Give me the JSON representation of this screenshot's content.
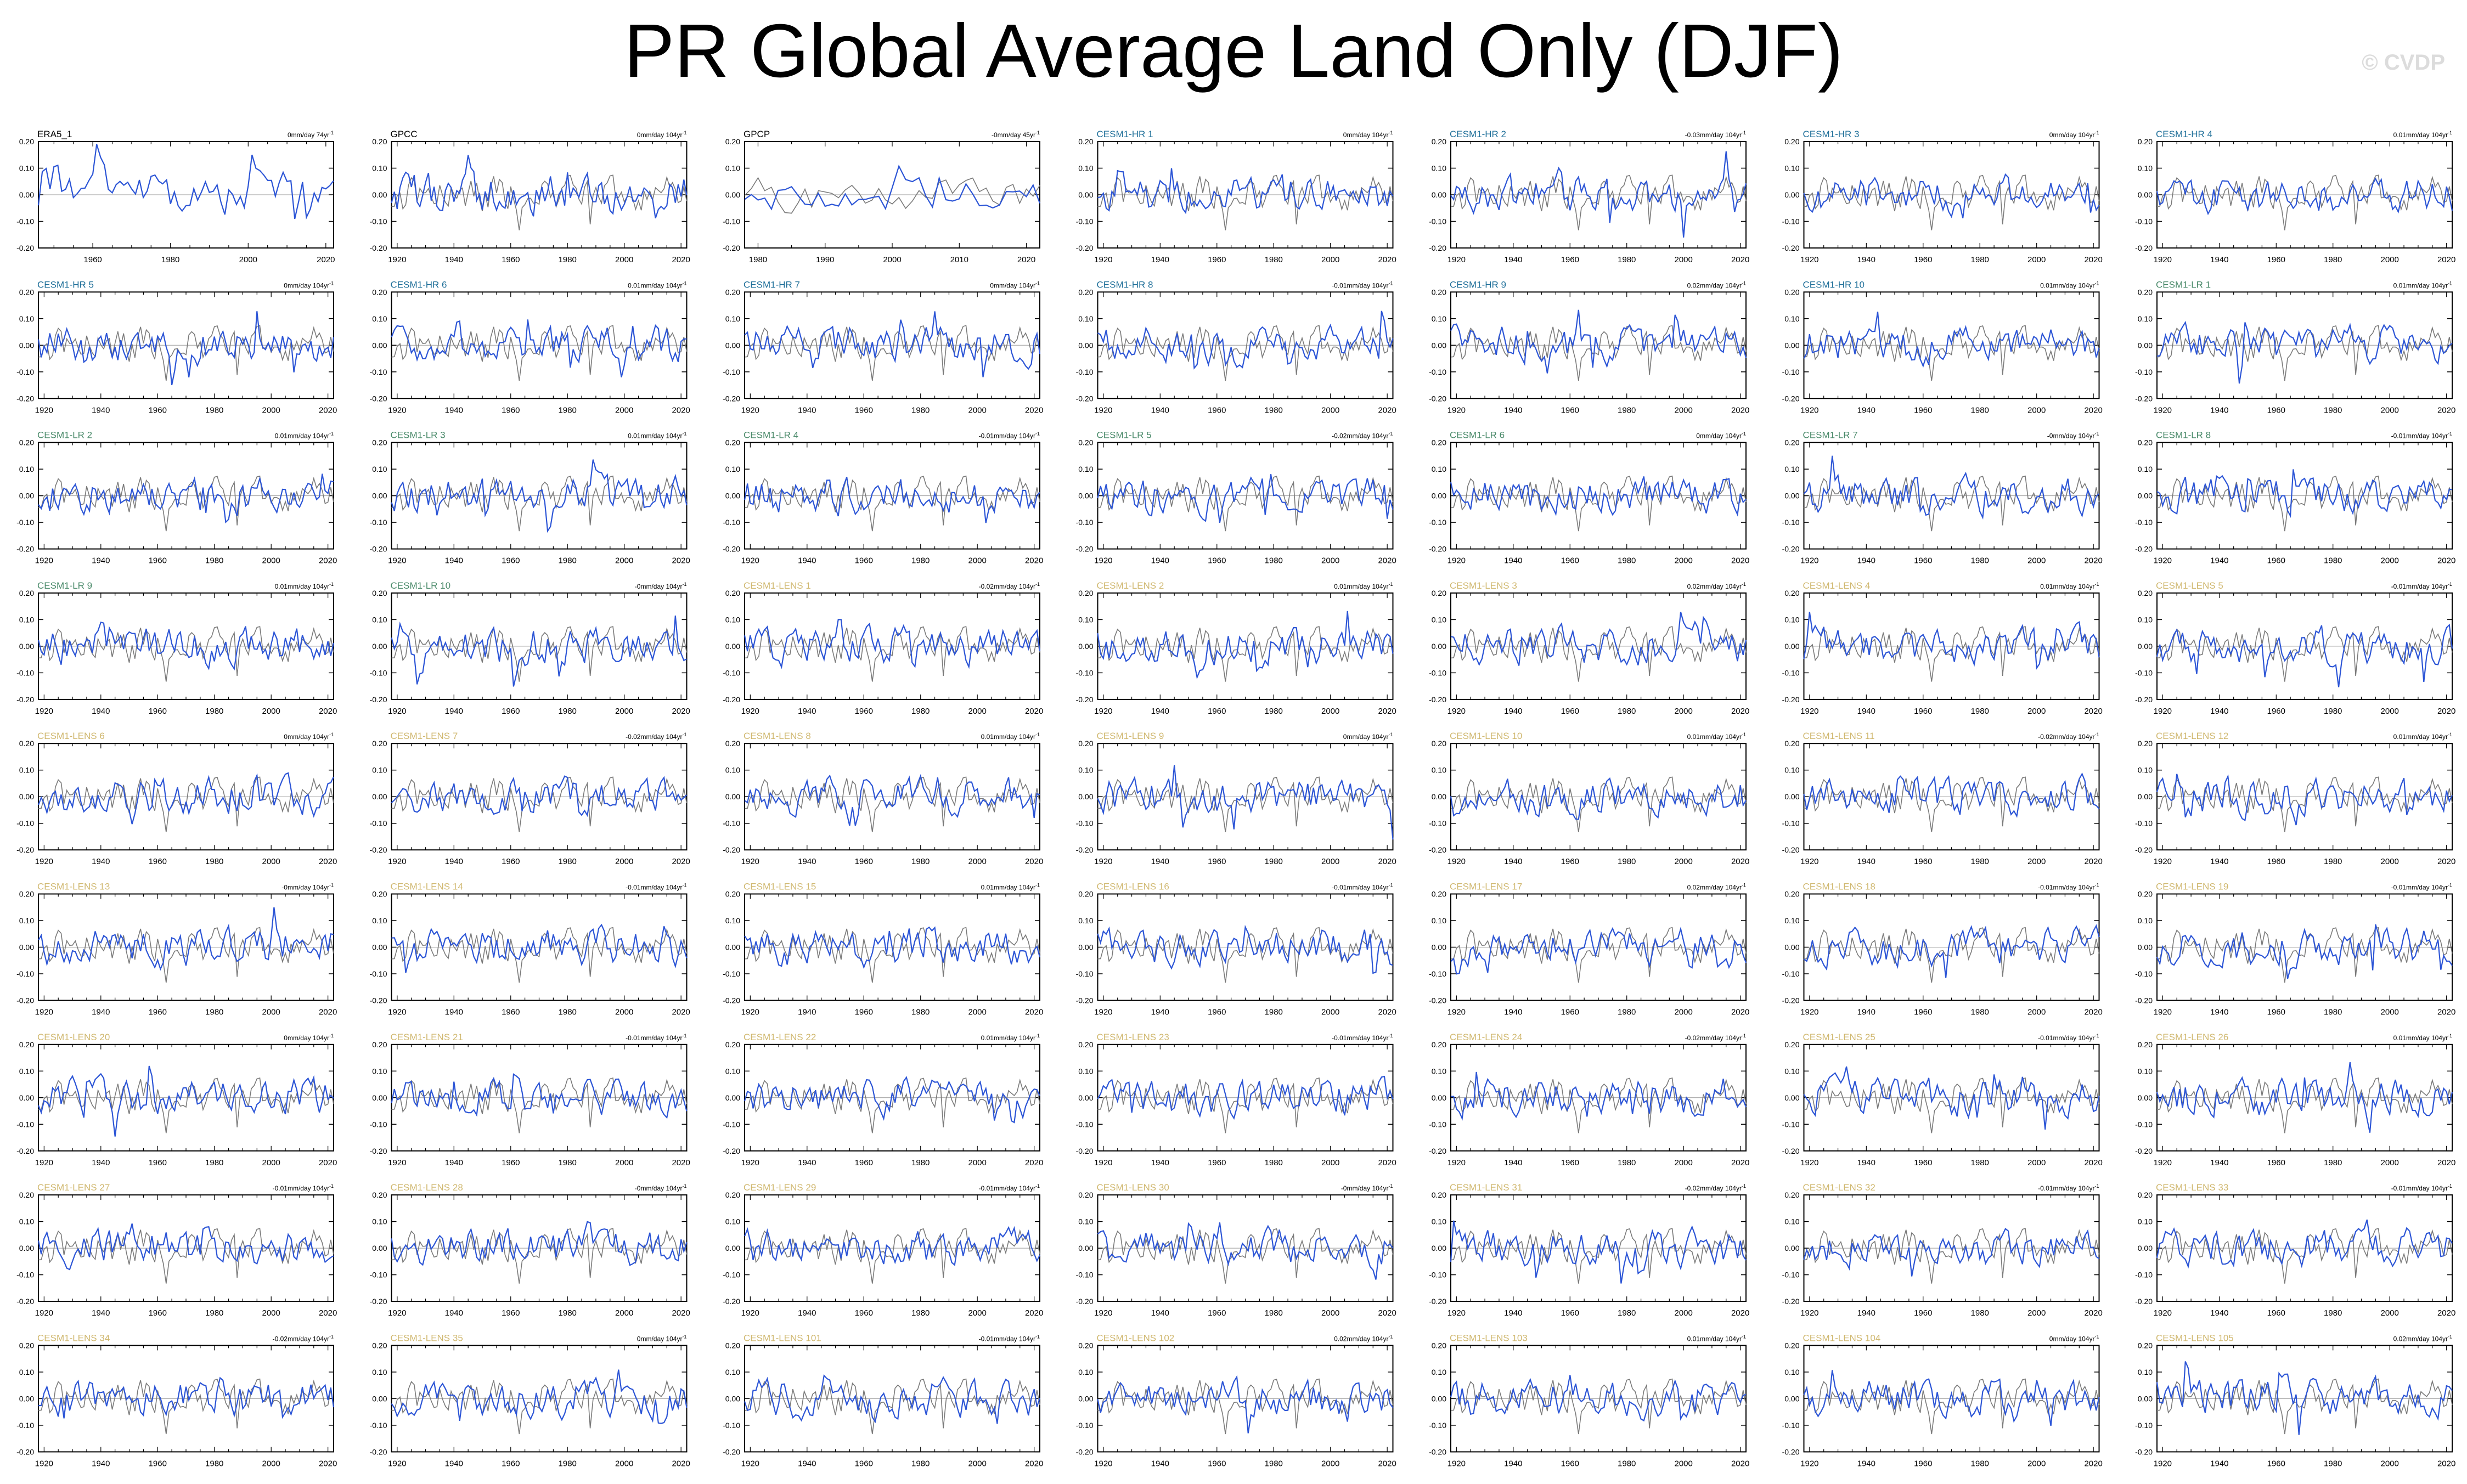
{
  "figure": {
    "title": "PR Global Average Land Only (DJF)",
    "watermark": "© CVDP",
    "obs_line_color": "#7a7a7a",
    "model_line_color": "#2c55d6",
    "label_colors": {
      "obs": "#000000",
      "hr": "#1f6f99",
      "lr": "#4a8a6a",
      "lens": "#d0b870"
    }
  },
  "chart_data": {
    "type": "line",
    "ylim": [
      -0.2,
      0.2
    ],
    "yticks": [
      -0.2,
      -0.1,
      0.0,
      0.1,
      0.2
    ],
    "ytick_labels": [
      "-0.20",
      "-0.10",
      "0.00",
      "0.10",
      "0.20"
    ],
    "grid": false,
    "panels": [
      {
        "label": "ERA5_1",
        "trend": "0mm/day 74yr",
        "group": "obs",
        "xlim": [
          1946,
          2022
        ],
        "xticks": [
          1960,
          1980,
          2000,
          2020
        ],
        "amp": 0.085,
        "seed": 11
      },
      {
        "label": "GPCC",
        "trend": "0mm/day 104yr",
        "group": "obs",
        "xlim": [
          1918,
          2022
        ],
        "xticks": [
          1920,
          1940,
          1960,
          1980,
          2000,
          2020
        ],
        "amp": 0.085,
        "seed": 12
      },
      {
        "label": "GPCP",
        "trend": "-0mm/day 45yr",
        "group": "obs",
        "xlim": [
          1978,
          2022
        ],
        "xticks": [
          1980,
          1990,
          2000,
          2010,
          2020
        ],
        "amp": 0.07,
        "seed": 13
      },
      {
        "label": "CESM1-HR 1",
        "trend": "0mm/day 104yr",
        "group": "hr",
        "amp": 0.075,
        "seed": 14
      },
      {
        "label": "CESM1-HR 2",
        "trend": "-0.03mm/day 104yr",
        "group": "hr",
        "amp": 0.075,
        "seed": 15
      },
      {
        "label": "CESM1-HR 3",
        "trend": "0mm/day 104yr",
        "group": "hr",
        "amp": 0.075,
        "seed": 16
      },
      {
        "label": "CESM1-HR 4",
        "trend": "0.01mm/day 104yr",
        "group": "hr",
        "amp": 0.075,
        "seed": 17
      },
      {
        "label": "CESM1-HR 5",
        "trend": "0mm/day 104yr",
        "group": "hr",
        "amp": 0.075,
        "seed": 18
      },
      {
        "label": "CESM1-HR 6",
        "trend": "0.01mm/day 104yr",
        "group": "hr",
        "amp": 0.075,
        "seed": 19
      },
      {
        "label": "CESM1-HR 7",
        "trend": "0mm/day 104yr",
        "group": "hr",
        "amp": 0.075,
        "seed": 20
      },
      {
        "label": "CESM1-HR 8",
        "trend": "-0.01mm/day 104yr",
        "group": "hr",
        "amp": 0.075,
        "seed": 21
      },
      {
        "label": "CESM1-HR 9",
        "trend": "0.02mm/day 104yr",
        "group": "hr",
        "amp": 0.075,
        "seed": 22
      },
      {
        "label": "CESM1-HR 10",
        "trend": "0.01mm/day 104yr",
        "group": "hr",
        "amp": 0.075,
        "seed": 23
      },
      {
        "label": "CESM1-LR 1",
        "trend": "0.01mm/day 104yr",
        "group": "lr",
        "amp": 0.075,
        "seed": 24
      },
      {
        "label": "CESM1-LR 2",
        "trend": "0.01mm/day 104yr",
        "group": "lr",
        "amp": 0.075,
        "seed": 25
      },
      {
        "label": "CESM1-LR 3",
        "trend": "0.01mm/day 104yr",
        "group": "lr",
        "amp": 0.075,
        "seed": 26
      },
      {
        "label": "CESM1-LR 4",
        "trend": "-0.01mm/day 104yr",
        "group": "lr",
        "amp": 0.075,
        "seed": 27
      },
      {
        "label": "CESM1-LR 5",
        "trend": "-0.02mm/day 104yr",
        "group": "lr",
        "amp": 0.075,
        "seed": 28
      },
      {
        "label": "CESM1-LR 6",
        "trend": "0mm/day 104yr",
        "group": "lr",
        "amp": 0.075,
        "seed": 29
      },
      {
        "label": "CESM1-LR 7",
        "trend": "-0mm/day 104yr",
        "group": "lr",
        "amp": 0.075,
        "seed": 30
      },
      {
        "label": "CESM1-LR 8",
        "trend": "-0.01mm/day 104yr",
        "group": "lr",
        "amp": 0.075,
        "seed": 31
      },
      {
        "label": "CESM1-LR 9",
        "trend": "0.01mm/day 104yr",
        "group": "lr",
        "amp": 0.075,
        "seed": 32
      },
      {
        "label": "CESM1-LR 10",
        "trend": "-0mm/day 104yr",
        "group": "lr",
        "amp": 0.075,
        "seed": 33
      },
      {
        "label": "CESM1-LENS 1",
        "trend": "-0.02mm/day 104yr",
        "group": "lens",
        "amp": 0.075,
        "seed": 34
      },
      {
        "label": "CESM1-LENS 2",
        "trend": "0.01mm/day 104yr",
        "group": "lens",
        "amp": 0.075,
        "seed": 35
      },
      {
        "label": "CESM1-LENS 3",
        "trend": "0.02mm/day 104yr",
        "group": "lens",
        "amp": 0.075,
        "seed": 36
      },
      {
        "label": "CESM1-LENS 4",
        "trend": "0.01mm/day 104yr",
        "group": "lens",
        "amp": 0.075,
        "seed": 37
      },
      {
        "label": "CESM1-LENS 5",
        "trend": "-0.01mm/day 104yr",
        "group": "lens",
        "amp": 0.075,
        "seed": 38
      },
      {
        "label": "CESM1-LENS 6",
        "trend": "0mm/day 104yr",
        "group": "lens",
        "amp": 0.075,
        "seed": 39
      },
      {
        "label": "CESM1-LENS 7",
        "trend": "-0.02mm/day 104yr",
        "group": "lens",
        "amp": 0.075,
        "seed": 40
      },
      {
        "label": "CESM1-LENS 8",
        "trend": "0.01mm/day 104yr",
        "group": "lens",
        "amp": 0.075,
        "seed": 41
      },
      {
        "label": "CESM1-LENS 9",
        "trend": "0mm/day 104yr",
        "group": "lens",
        "amp": 0.075,
        "seed": 42
      },
      {
        "label": "CESM1-LENS 10",
        "trend": "0.01mm/day 104yr",
        "group": "lens",
        "amp": 0.075,
        "seed": 43
      },
      {
        "label": "CESM1-LENS 11",
        "trend": "-0.02mm/day 104yr",
        "group": "lens",
        "amp": 0.075,
        "seed": 44
      },
      {
        "label": "CESM1-LENS 12",
        "trend": "0.01mm/day 104yr",
        "group": "lens",
        "amp": 0.075,
        "seed": 45
      },
      {
        "label": "CESM1-LENS 13",
        "trend": "-0mm/day 104yr",
        "group": "lens",
        "amp": 0.075,
        "seed": 46
      },
      {
        "label": "CESM1-LENS 14",
        "trend": "-0.01mm/day 104yr",
        "group": "lens",
        "amp": 0.075,
        "seed": 47
      },
      {
        "label": "CESM1-LENS 15",
        "trend": "0.01mm/day 104yr",
        "group": "lens",
        "amp": 0.075,
        "seed": 48
      },
      {
        "label": "CESM1-LENS 16",
        "trend": "-0.01mm/day 104yr",
        "group": "lens",
        "amp": 0.075,
        "seed": 49
      },
      {
        "label": "CESM1-LENS 17",
        "trend": "0.02mm/day 104yr",
        "group": "lens",
        "amp": 0.075,
        "seed": 50
      },
      {
        "label": "CESM1-LENS 18",
        "trend": "-0.01mm/day 104yr",
        "group": "lens",
        "amp": 0.075,
        "seed": 51
      },
      {
        "label": "CESM1-LENS 19",
        "trend": "-0.01mm/day 104yr",
        "group": "lens",
        "amp": 0.075,
        "seed": 52
      },
      {
        "label": "CESM1-LENS 20",
        "trend": "0mm/day 104yr",
        "group": "lens",
        "amp": 0.075,
        "seed": 53
      },
      {
        "label": "CESM1-LENS 21",
        "trend": "-0.01mm/day 104yr",
        "group": "lens",
        "amp": 0.075,
        "seed": 54
      },
      {
        "label": "CESM1-LENS 22",
        "trend": "0.01mm/day 104yr",
        "group": "lens",
        "amp": 0.075,
        "seed": 55
      },
      {
        "label": "CESM1-LENS 23",
        "trend": "-0.01mm/day 104yr",
        "group": "lens",
        "amp": 0.075,
        "seed": 56
      },
      {
        "label": "CESM1-LENS 24",
        "trend": "-0.02mm/day 104yr",
        "group": "lens",
        "amp": 0.075,
        "seed": 57
      },
      {
        "label": "CESM1-LENS 25",
        "trend": "-0.01mm/day 104yr",
        "group": "lens",
        "amp": 0.075,
        "seed": 58
      },
      {
        "label": "CESM1-LENS 26",
        "trend": "0.01mm/day 104yr",
        "group": "lens",
        "amp": 0.075,
        "seed": 59
      },
      {
        "label": "CESM1-LENS 27",
        "trend": "-0.01mm/day 104yr",
        "group": "lens",
        "amp": 0.075,
        "seed": 60
      },
      {
        "label": "CESM1-LENS 28",
        "trend": "-0mm/day 104yr",
        "group": "lens",
        "amp": 0.075,
        "seed": 61
      },
      {
        "label": "CESM1-LENS 29",
        "trend": "-0.01mm/day 104yr",
        "group": "lens",
        "amp": 0.075,
        "seed": 62
      },
      {
        "label": "CESM1-LENS 30",
        "trend": "-0mm/day 104yr",
        "group": "lens",
        "amp": 0.075,
        "seed": 63
      },
      {
        "label": "CESM1-LENS 31",
        "trend": "-0.02mm/day 104yr",
        "group": "lens",
        "amp": 0.075,
        "seed": 64
      },
      {
        "label": "CESM1-LENS 32",
        "trend": "-0.01mm/day 104yr",
        "group": "lens",
        "amp": 0.075,
        "seed": 65
      },
      {
        "label": "CESM1-LENS 33",
        "trend": "-0.01mm/day 104yr",
        "group": "lens",
        "amp": 0.075,
        "seed": 66
      },
      {
        "label": "CESM1-LENS 34",
        "trend": "-0.02mm/day 104yr",
        "group": "lens",
        "amp": 0.075,
        "seed": 67
      },
      {
        "label": "CESM1-LENS 35",
        "trend": "0mm/day 104yr",
        "group": "lens",
        "amp": 0.075,
        "seed": 68
      },
      {
        "label": "CESM1-LENS 101",
        "trend": "-0.01mm/day 104yr",
        "group": "lens",
        "amp": 0.075,
        "seed": 69
      },
      {
        "label": "CESM1-LENS 102",
        "trend": "0.02mm/day 104yr",
        "group": "lens",
        "amp": 0.075,
        "seed": 70
      },
      {
        "label": "CESM1-LENS 103",
        "trend": "0.01mm/day 104yr",
        "group": "lens",
        "amp": 0.075,
        "seed": 71
      },
      {
        "label": "CESM1-LENS 104",
        "trend": "0mm/day 104yr",
        "group": "lens",
        "amp": 0.075,
        "seed": 72
      },
      {
        "label": "CESM1-LENS 105",
        "trend": "0.02mm/day 104yr",
        "group": "lens",
        "amp": 0.075,
        "seed": 73
      }
    ]
  }
}
